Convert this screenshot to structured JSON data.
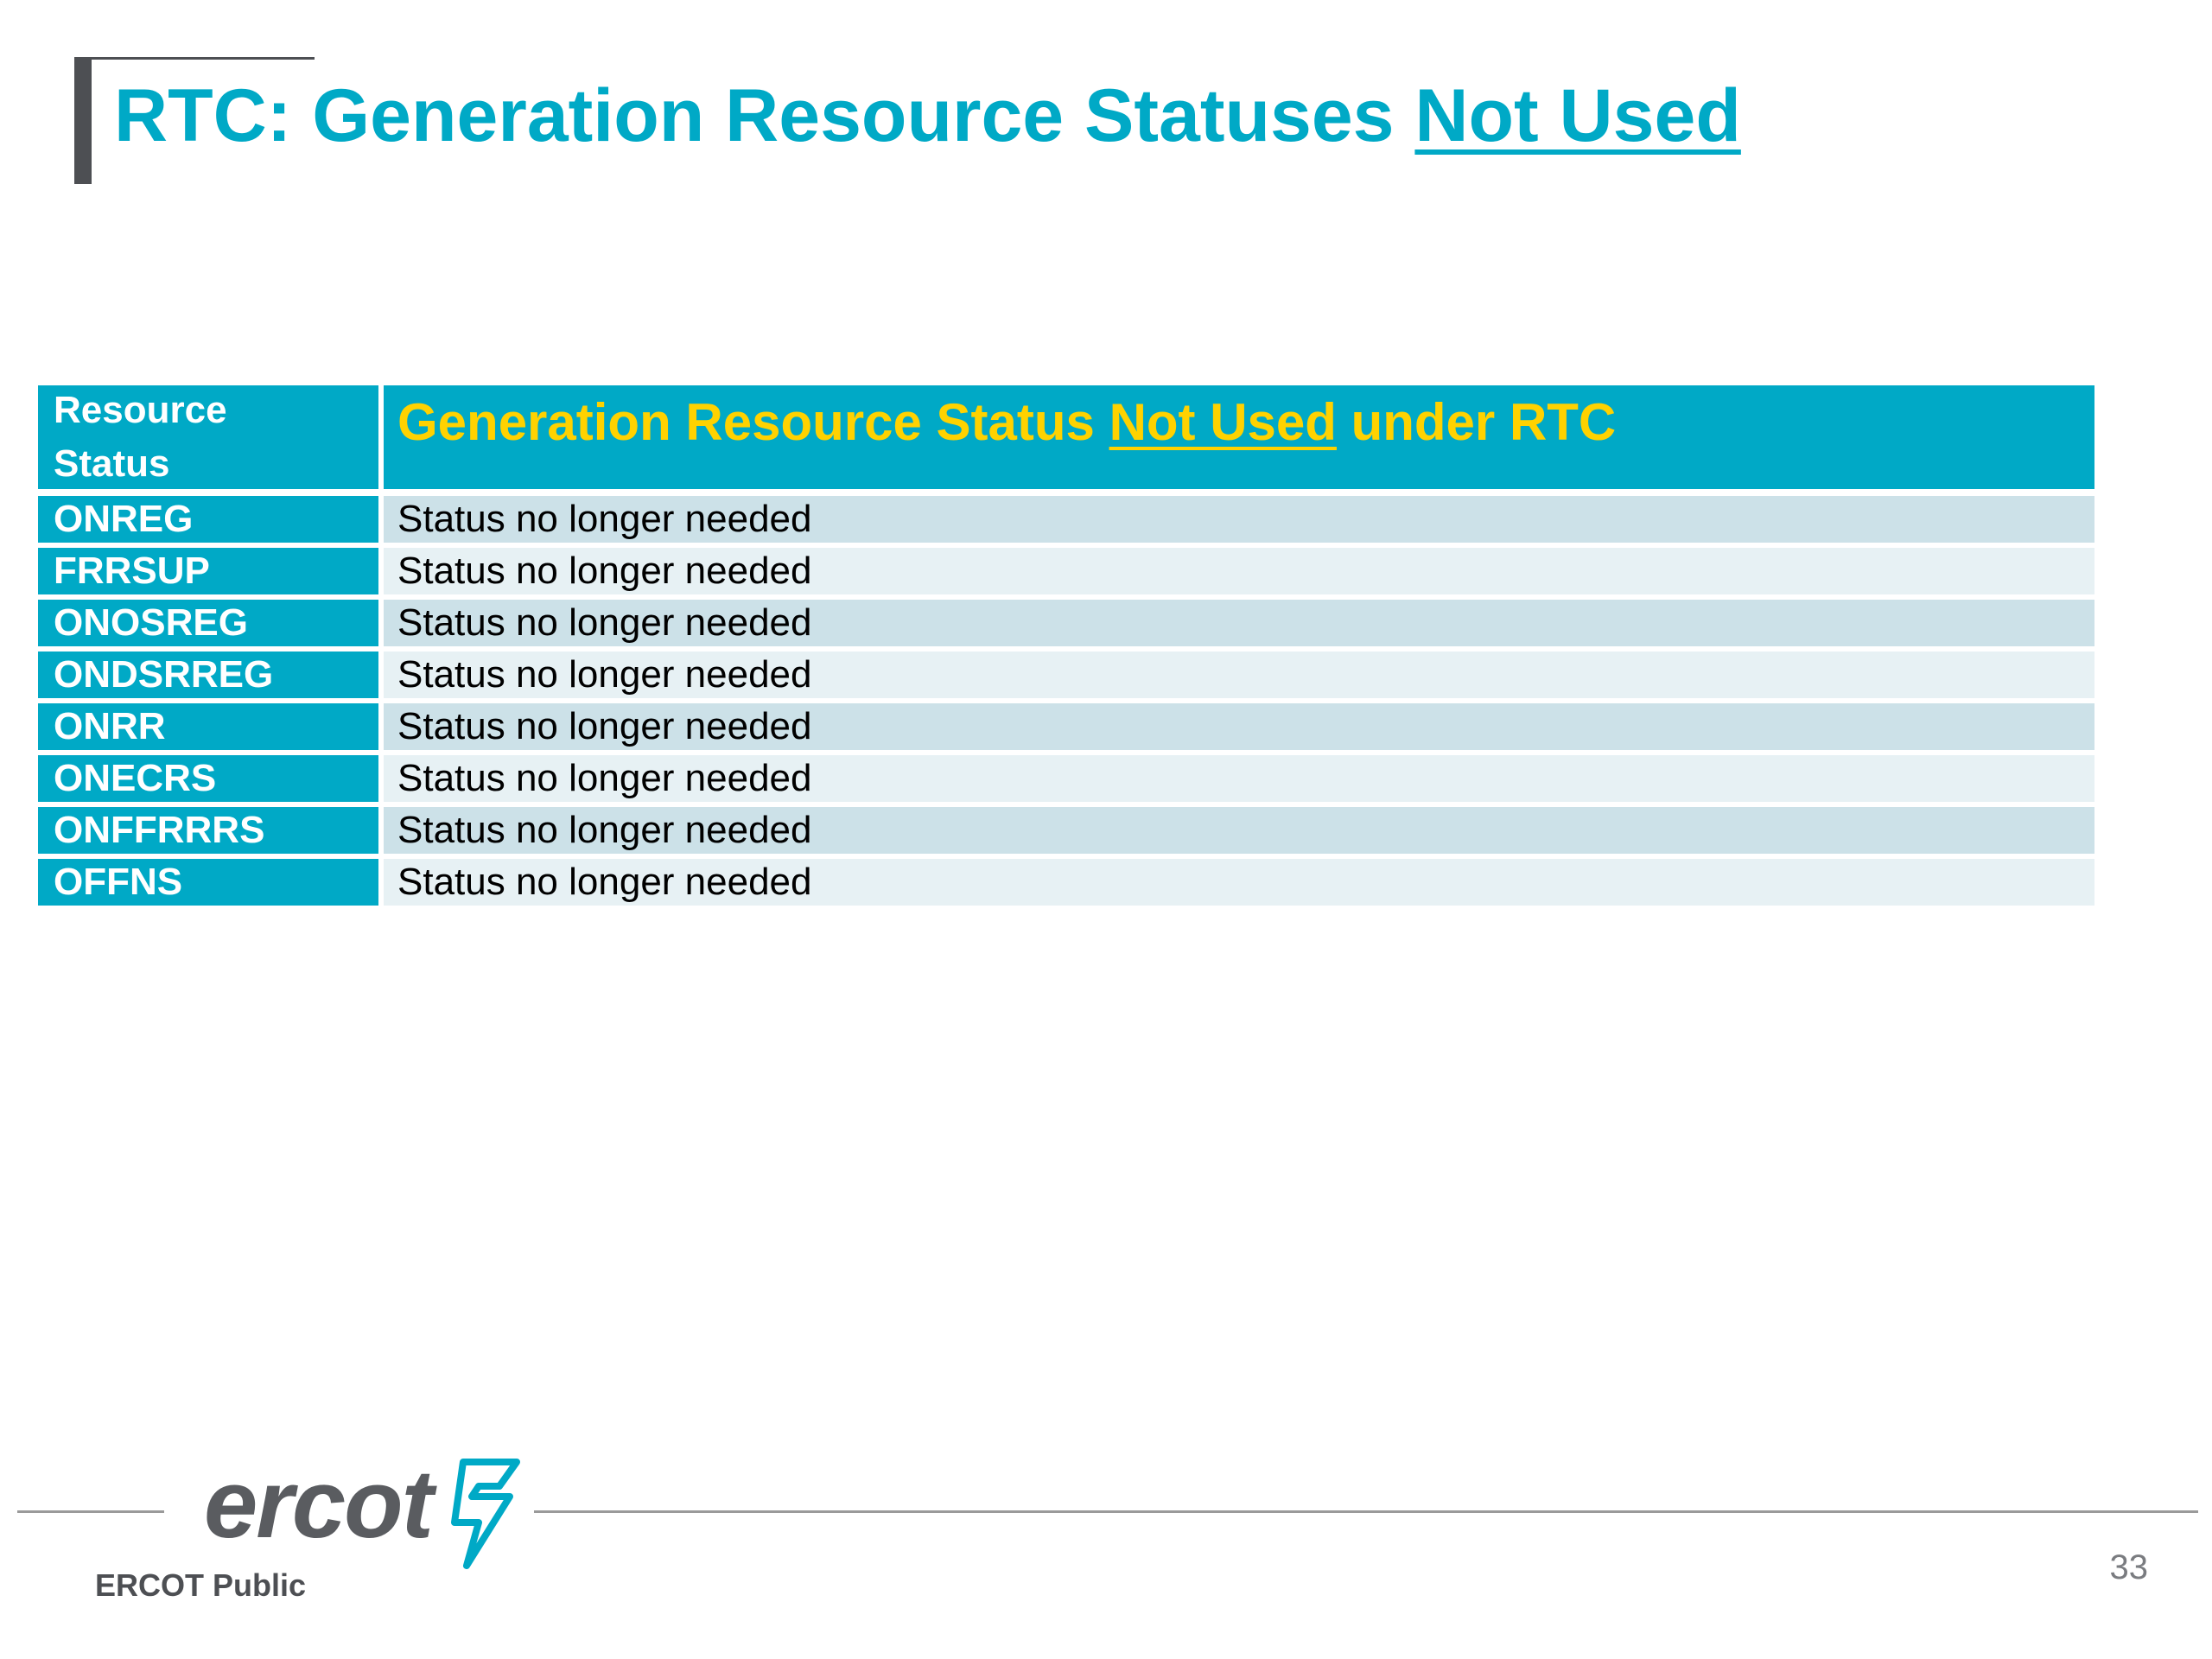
{
  "title": {
    "prefix": "RTC: Generation Resource Statuses ",
    "underlined": "Not Used"
  },
  "table": {
    "header_left_line1": "Resource",
    "header_left_line2": "Status",
    "header_right_prefix": "Generation Resource Status ",
    "header_right_underlined": "Not Used",
    "header_right_suffix": " under RTC",
    "rows": [
      {
        "status": "ONREG",
        "description": "Status no longer needed"
      },
      {
        "status": "FRRSUP",
        "description": "Status no longer needed"
      },
      {
        "status": "ONOSREG",
        "description": "Status no longer needed"
      },
      {
        "status": "ONDSRREG",
        "description": "Status no longer needed"
      },
      {
        "status": "ONRR",
        "description": "Status no longer needed"
      },
      {
        "status": "ONECRS",
        "description": "Status no longer needed"
      },
      {
        "status": "ONFFRRRS",
        "description": "Status no longer needed"
      },
      {
        "status": "OFFNS",
        "description": "Status no longer needed"
      }
    ]
  },
  "footer": {
    "logo_text": "ercot",
    "classification": "ERCOT Public",
    "page_number": "33"
  },
  "colors": {
    "accent": "#00a9c6",
    "header_text": "#ffd200",
    "row_odd": "#cce1e8",
    "row_even": "#e7f1f4"
  }
}
